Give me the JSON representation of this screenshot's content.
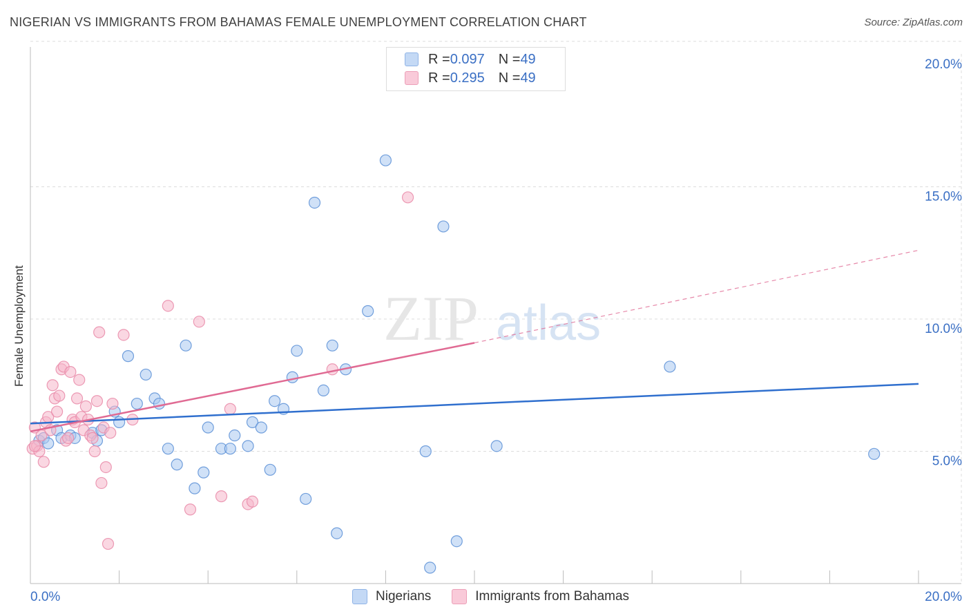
{
  "header": {
    "title": "NIGERIAN VS IMMIGRANTS FROM BAHAMAS FEMALE UNEMPLOYMENT CORRELATION CHART",
    "source": "Source: ZipAtlas.com"
  },
  "watermark": {
    "zip": "ZIP",
    "atlas": "atlas"
  },
  "legend_top": [
    {
      "r_label": "R = ",
      "r_value": "0.097",
      "n_label": "N = ",
      "n_value": "49",
      "color": "#aac8f0"
    },
    {
      "r_label": "R = ",
      "r_value": "0.295",
      "n_label": "N = ",
      "n_value": "49",
      "color": "#f5b7cb"
    }
  ],
  "chart_data": {
    "type": "scatter",
    "title": "NIGERIAN VS IMMIGRANTS FROM BAHAMAS FEMALE UNEMPLOYMENT CORRELATION CHART",
    "xlabel": "",
    "ylabel": "Female Unemployment",
    "xlim": [
      0,
      20
    ],
    "ylim": [
      0,
      20.6
    ],
    "x_tick_labels": [
      {
        "value": 0,
        "label": "0.0%"
      },
      {
        "value": 20,
        "label": "20.0%"
      }
    ],
    "y_tick_labels": [
      {
        "value": 5,
        "label": "5.0%"
      },
      {
        "value": 10,
        "label": "10.0%"
      },
      {
        "value": 15,
        "label": "15.0%"
      },
      {
        "value": 20,
        "label": "20.0%"
      }
    ],
    "grid": true,
    "legend_position": "top-center",
    "series": [
      {
        "name": "Nigerians",
        "color": "#5b8fd6",
        "fill": "#aac8f0",
        "trend": {
          "x": [
            0,
            20
          ],
          "y": [
            6.05,
            7.55
          ],
          "dashed_from": null,
          "line_color": "#2f6fce"
        },
        "points": [
          [
            0.2,
            5.4
          ],
          [
            0.3,
            5.5
          ],
          [
            0.4,
            5.3
          ],
          [
            0.6,
            5.8
          ],
          [
            0.7,
            5.5
          ],
          [
            0.9,
            5.6
          ],
          [
            1.0,
            5.5
          ],
          [
            1.4,
            5.7
          ],
          [
            1.5,
            5.4
          ],
          [
            1.6,
            5.8
          ],
          [
            1.9,
            6.5
          ],
          [
            2.0,
            6.1
          ],
          [
            2.2,
            8.6
          ],
          [
            2.4,
            6.8
          ],
          [
            2.6,
            7.9
          ],
          [
            2.8,
            7.0
          ],
          [
            2.9,
            6.8
          ],
          [
            3.1,
            5.1
          ],
          [
            3.3,
            4.5
          ],
          [
            3.5,
            9.0
          ],
          [
            3.7,
            3.6
          ],
          [
            3.9,
            4.2
          ],
          [
            4.0,
            5.9
          ],
          [
            4.3,
            5.1
          ],
          [
            4.5,
            5.1
          ],
          [
            4.6,
            5.6
          ],
          [
            4.9,
            5.2
          ],
          [
            5.0,
            6.1
          ],
          [
            5.2,
            5.9
          ],
          [
            5.4,
            4.3
          ],
          [
            5.5,
            6.9
          ],
          [
            5.7,
            6.6
          ],
          [
            5.9,
            7.8
          ],
          [
            6.0,
            8.8
          ],
          [
            6.2,
            3.2
          ],
          [
            6.4,
            14.4
          ],
          [
            6.6,
            7.3
          ],
          [
            6.8,
            9.0
          ],
          [
            6.9,
            1.9
          ],
          [
            7.1,
            8.1
          ],
          [
            7.6,
            10.3
          ],
          [
            8.0,
            16.0
          ],
          [
            8.9,
            5.0
          ],
          [
            9.3,
            13.5
          ],
          [
            9.6,
            1.6
          ],
          [
            9.0,
            0.6
          ],
          [
            10.5,
            5.2
          ],
          [
            14.4,
            8.2
          ],
          [
            19.0,
            4.9
          ]
        ]
      },
      {
        "name": "Immigrants from Bahamas",
        "color": "#e98aa8",
        "fill": "#f5b7cb",
        "trend": {
          "x": [
            0,
            10
          ],
          "y": [
            5.75,
            9.1
          ],
          "dashed_to": 20,
          "dashed_y": 12.6,
          "line_color": "#e06a93"
        },
        "points": [
          [
            0.05,
            5.1
          ],
          [
            0.1,
            5.9
          ],
          [
            0.15,
            5.2
          ],
          [
            0.2,
            5.0
          ],
          [
            0.25,
            5.6
          ],
          [
            0.3,
            4.6
          ],
          [
            0.35,
            6.1
          ],
          [
            0.4,
            6.3
          ],
          [
            0.45,
            5.8
          ],
          [
            0.5,
            7.5
          ],
          [
            0.55,
            7.0
          ],
          [
            0.6,
            6.5
          ],
          [
            0.65,
            7.1
          ],
          [
            0.7,
            8.1
          ],
          [
            0.75,
            8.2
          ],
          [
            0.8,
            5.4
          ],
          [
            0.85,
            5.5
          ],
          [
            0.9,
            8.0
          ],
          [
            0.95,
            6.2
          ],
          [
            1.0,
            6.1
          ],
          [
            1.05,
            7.0
          ],
          [
            1.1,
            7.7
          ],
          [
            1.15,
            6.3
          ],
          [
            1.2,
            5.8
          ],
          [
            1.25,
            6.7
          ],
          [
            1.3,
            6.2
          ],
          [
            1.35,
            5.6
          ],
          [
            1.4,
            5.5
          ],
          [
            1.45,
            5.0
          ],
          [
            1.5,
            6.9
          ],
          [
            1.55,
            9.5
          ],
          [
            1.6,
            3.8
          ],
          [
            1.65,
            5.9
          ],
          [
            1.7,
            4.4
          ],
          [
            1.75,
            1.5
          ],
          [
            1.8,
            5.7
          ],
          [
            1.85,
            6.8
          ],
          [
            2.1,
            9.4
          ],
          [
            2.3,
            6.2
          ],
          [
            3.1,
            10.5
          ],
          [
            3.6,
            2.8
          ],
          [
            3.8,
            9.9
          ],
          [
            4.3,
            3.3
          ],
          [
            4.5,
            6.6
          ],
          [
            4.9,
            3.0
          ],
          [
            5.0,
            3.1
          ],
          [
            6.8,
            8.1
          ],
          [
            8.5,
            14.6
          ],
          [
            0.1,
            5.2
          ]
        ]
      }
    ]
  },
  "legend_bottom": [
    {
      "label": "Nigerians",
      "color": "#aac8f0"
    },
    {
      "label": "Immigrants from Bahamas",
      "color": "#f5b7cb"
    }
  ]
}
